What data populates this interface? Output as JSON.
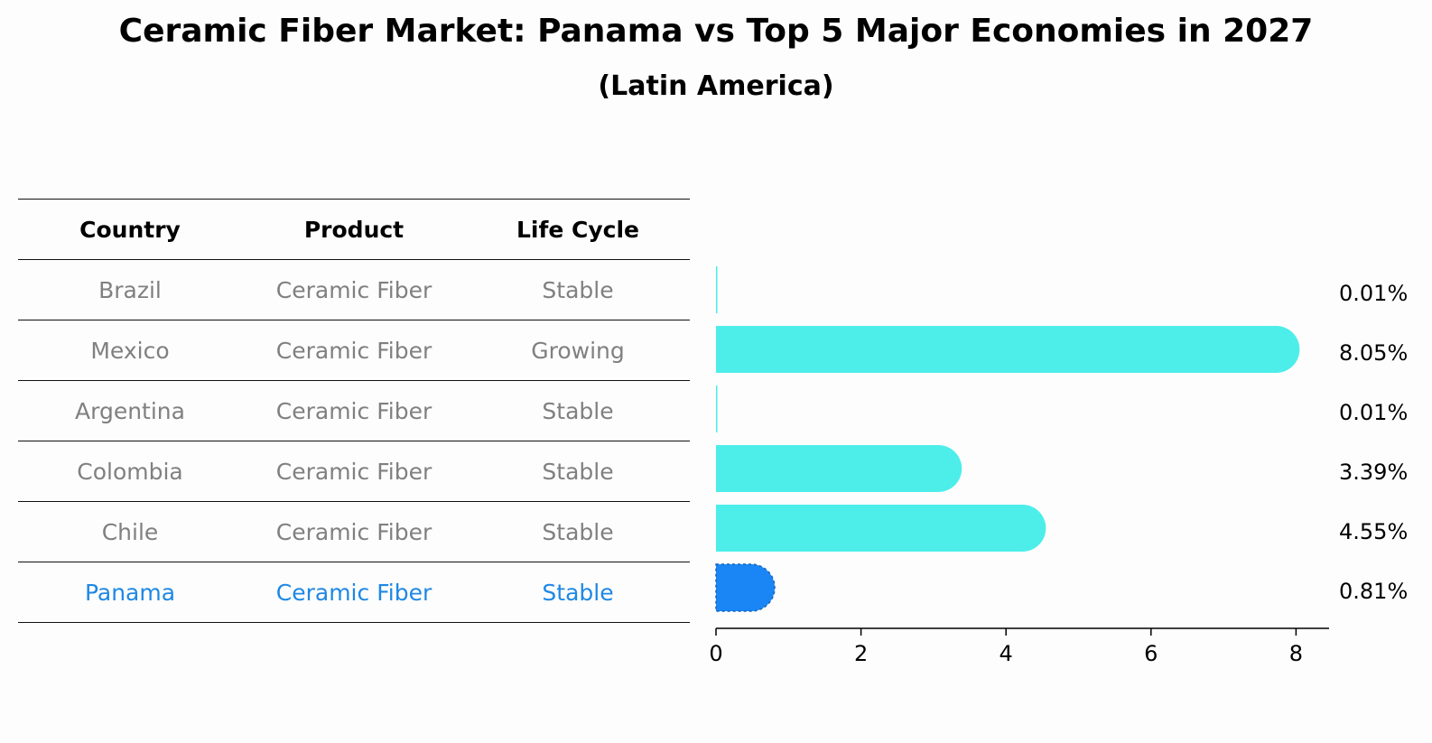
{
  "title": "Ceramic Fiber Market: Panama vs Top 5 Major Economies in 2027",
  "subtitle": "(Latin America)",
  "table": {
    "headers": [
      "Country",
      "Product",
      "Life Cycle"
    ],
    "rows": [
      {
        "country": "Brazil",
        "product": "Ceramic Fiber",
        "life_cycle": "Stable"
      },
      {
        "country": "Mexico",
        "product": "Ceramic Fiber",
        "life_cycle": "Growing"
      },
      {
        "country": "Argentina",
        "product": "Ceramic Fiber",
        "life_cycle": "Stable"
      },
      {
        "country": "Colombia",
        "product": "Ceramic Fiber",
        "life_cycle": "Stable"
      },
      {
        "country": "Chile",
        "product": "Ceramic Fiber",
        "life_cycle": "Stable"
      },
      {
        "country": "Panama",
        "product": "Ceramic Fiber",
        "life_cycle": "Stable"
      }
    ]
  },
  "colors": {
    "bar": "#4deeea",
    "highlight_bar": "#1a86f5",
    "muted_text": "#808080",
    "highlight_text": "#1e88e5"
  },
  "chart_data": {
    "type": "bar",
    "orientation": "horizontal",
    "categories": [
      "Brazil",
      "Mexico",
      "Argentina",
      "Colombia",
      "Chile",
      "Panama"
    ],
    "values": [
      0.01,
      8.05,
      0.01,
      3.39,
      4.55,
      0.81
    ],
    "value_labels": [
      "0.01%",
      "8.05%",
      "0.01%",
      "3.39%",
      "4.55%",
      "0.81%"
    ],
    "highlight": "Panama",
    "xlim": [
      0,
      8.5
    ],
    "xticks": [
      0,
      2,
      4,
      6,
      8
    ],
    "grid": false
  }
}
